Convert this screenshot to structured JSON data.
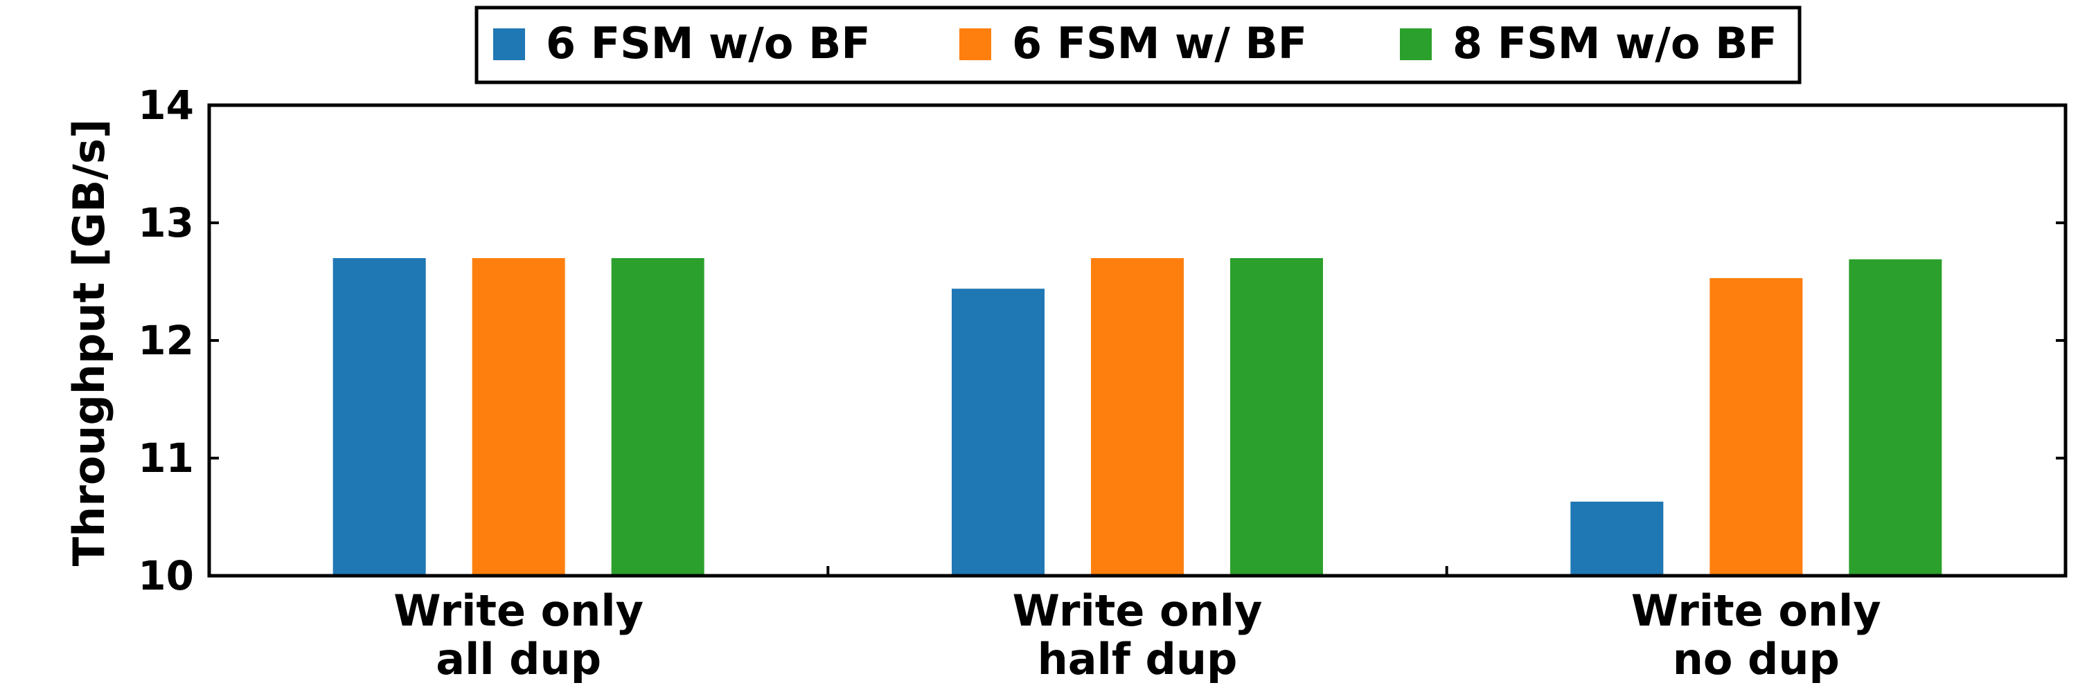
{
  "chart_data": {
    "type": "bar",
    "categories": [
      [
        "Write only",
        "all dup"
      ],
      [
        "Write only",
        "half dup"
      ],
      [
        "Write only",
        "no dup"
      ]
    ],
    "series": [
      {
        "name": "6 FSM w/o BF",
        "color": "#1f77b4",
        "values": [
          12.7,
          12.44,
          10.63
        ]
      },
      {
        "name": "6 FSM w/ BF",
        "color": "#ff7f0e",
        "values": [
          12.7,
          12.7,
          12.53
        ]
      },
      {
        "name": "8 FSM w/o BF",
        "color": "#2ca02c",
        "values": [
          12.7,
          12.7,
          12.69
        ]
      }
    ],
    "ylabel": "Throughput [GB/s]",
    "ylim": [
      10,
      14
    ],
    "yticks": [
      10,
      11,
      12,
      13,
      14
    ],
    "grid": false,
    "legend_position": "top-center"
  }
}
